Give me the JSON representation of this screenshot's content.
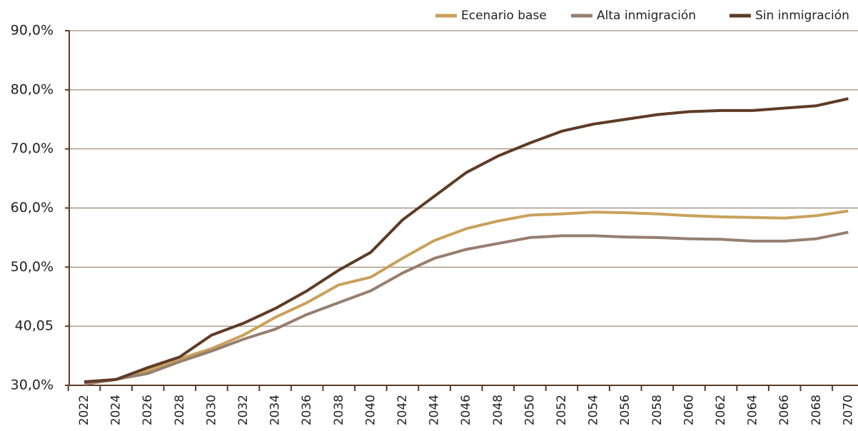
{
  "chart_data": {
    "type": "line",
    "categories": [
      "2022",
      "2024",
      "2026",
      "2028",
      "2030",
      "2032",
      "2034",
      "2036",
      "2038",
      "2040",
      "2042",
      "2044",
      "2046",
      "2048",
      "2050",
      "2052",
      "2054",
      "2056",
      "2058",
      "2060",
      "2062",
      "2064",
      "2066",
      "2068",
      "2070"
    ],
    "series": [
      {
        "name": "Ecenario base",
        "color": "#c9a15b",
        "values": [
          30.2,
          31,
          32.5,
          34.5,
          36.2,
          38.5,
          41.5,
          44,
          47,
          48.3,
          51.5,
          54.5,
          56.5,
          57.8,
          58.8,
          59,
          59.3,
          59.2,
          59,
          58.7,
          58.5,
          58.4,
          58.3,
          58.7,
          59.5
        ]
      },
      {
        "name": "Alta inmigración",
        "color": "#957f70",
        "values": [
          30.2,
          31,
          32,
          34,
          35.8,
          37.8,
          39.5,
          42,
          44,
          46,
          49,
          51.5,
          53,
          54,
          55,
          55.3,
          55.3,
          55.1,
          55,
          54.8,
          54.7,
          54.4,
          54.4,
          54.8,
          55.9
        ]
      },
      {
        "name": "Sin inmigración",
        "color": "#5e3b26",
        "values": [
          30.6,
          31,
          33,
          34.8,
          38.5,
          40.5,
          43,
          46,
          49.5,
          52.5,
          58,
          62,
          66,
          68.8,
          71,
          73,
          74.2,
          75,
          75.8,
          76.3,
          76.5,
          76.5,
          76.9,
          77.3,
          78.5
        ]
      }
    ],
    "ylim": [
      30,
      90
    ],
    "yticks": [
      {
        "value": 30,
        "label": "30,0%"
      },
      {
        "value": 40,
        "label": "40,05"
      },
      {
        "value": 50,
        "label": "50,0%"
      },
      {
        "value": 60,
        "label": "60,0%"
      },
      {
        "value": 70,
        "label": "70,0%"
      },
      {
        "value": 80,
        "label": "80,0%"
      },
      {
        "value": 90,
        "label": "90,0%"
      }
    ],
    "grid": true,
    "legend": "top-right"
  }
}
